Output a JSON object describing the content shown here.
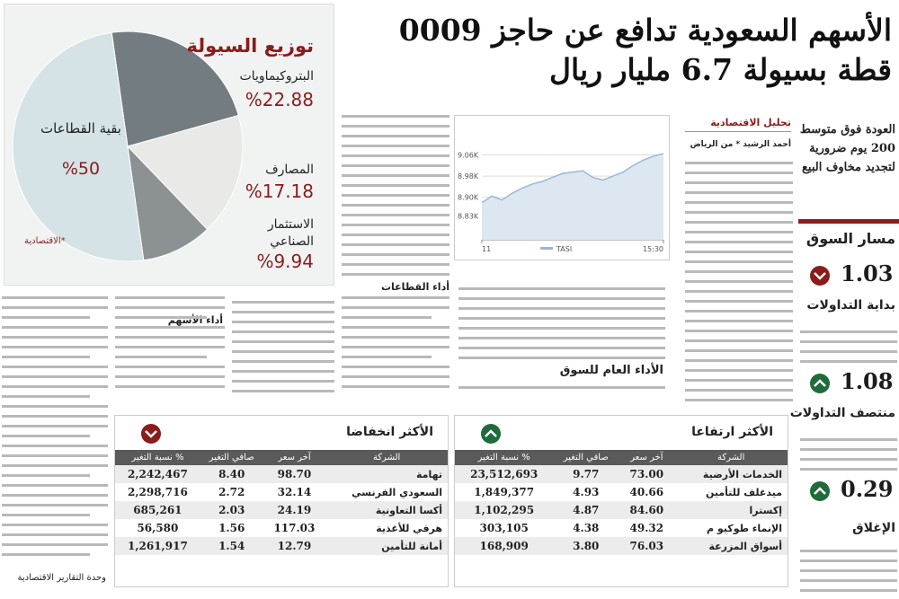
{
  "header": {
    "headline": [
      "الأسهم السعودية تدافع عن حاجز 0009",
      "قطة بسيولة 6.7 مليار ريال"
    ]
  },
  "chart_data": [
    {
      "type": "pie",
      "title": "توزيع السيولة",
      "labels": [
        "البتروكيماويات",
        "المصارف",
        "الاستثمار الصناعي",
        "بقية القطاعات"
      ],
      "values": [
        22.88,
        17.18,
        9.94,
        50
      ],
      "value_labels": [
        "%22.88",
        "%17.18",
        "%9.94",
        "%50"
      ],
      "colors": [
        "#737c80",
        "#e9e9e7",
        "#8c9194",
        "#d5e3e7"
      ],
      "source": "الاقتصادية*"
    },
    {
      "type": "line",
      "x": [
        11,
        11.25,
        11.5,
        11.75,
        12,
        12.25,
        12.5,
        12.75,
        13,
        13.25,
        13.5,
        13.75,
        14,
        14.25,
        14.5,
        14.75,
        15,
        15.25,
        15.5
      ],
      "series": [
        {
          "name": "TASI",
          "color": "#9bb8d3",
          "values": [
            8880,
            8905,
            8890,
            8915,
            8935,
            8950,
            8960,
            8975,
            8990,
            8995,
            9000,
            8975,
            8965,
            8980,
            8995,
            9020,
            9040,
            9055,
            9065
          ]
        }
      ],
      "xlim": [
        11,
        15.5
      ],
      "xticks": [
        {
          "value": 11,
          "label": "11"
        },
        {
          "value": 15.5,
          "label": "15:30"
        }
      ],
      "ylim": [
        8740,
        9180
      ],
      "yticks": [
        {
          "value": 8830,
          "label": "8.83K"
        },
        {
          "value": 8900,
          "label": "8.90K"
        },
        {
          "value": 8980,
          "label": "8.98K"
        },
        {
          "value": 9060,
          "label": "9.06K"
        }
      ],
      "grid": true
    }
  ],
  "sections": {
    "sectors": "أداء القطاعات",
    "market": "الأداء العام للسوق",
    "stocks": "أداء الأسهم",
    "unit": "وحدة التقارير الاقتصادية"
  },
  "analysis": {
    "title": "تحليل الاقتصادية",
    "author": "أحمد الرشيد * من الرياض"
  },
  "sidebar": {
    "highlight": "العودة فوق متوسط 200 يوم ضرورية لتجديد مخاوف البيع",
    "title": "مسار السوق",
    "items": [
      {
        "value": "1.03",
        "label": "بداية التداولات",
        "color": "#8b1c1c"
      },
      {
        "value": "1.08",
        "label": "منتصف التداولات",
        "color": "#1f6b3a"
      },
      {
        "value": "0.29",
        "label": "الإغلاق",
        "color": "#1f6b3a"
      }
    ]
  },
  "tables": [
    {
      "title": "الأكثر ارتفاعا",
      "color": "#1f6b3a",
      "headers": [
        "الشركة",
        "آخر سعر",
        "صافي التغير",
        "% نسبة التغير"
      ],
      "rows": [
        [
          "الخدمات الأرضية",
          "73.00",
          "9.77",
          "23,512,693"
        ],
        [
          "ميدغلف للتأمين",
          "40.66",
          "4.93",
          "1,849,377"
        ],
        [
          "إكسترا",
          "84.60",
          "4.87",
          "1,102,295"
        ],
        [
          "الإنماء طوكيو م",
          "49.32",
          "4.38",
          "303,105"
        ],
        [
          "أسواق المزرعة",
          "76.03",
          "3.80",
          "168,909"
        ]
      ]
    },
    {
      "title": "الأكثر انخفاضا",
      "color": "#8b1c1c",
      "headers": [
        "الشركة",
        "آخر سعر",
        "صافي التغير",
        "% نسبة التغير"
      ],
      "rows": [
        [
          "تهامة",
          "98.70",
          "8.40",
          "2,242,467"
        ],
        [
          "السعودي الفرنسي",
          "32.14",
          "2.72",
          "2,298,716"
        ],
        [
          "أكسا التعاونية",
          "24.19",
          "2.03",
          "685,261"
        ],
        [
          "هرفي للأغذية",
          "117.03",
          "1.56",
          "56,580"
        ],
        [
          "أمانة للتأمين",
          "12.79",
          "1.54",
          "1,261,917"
        ]
      ]
    }
  ]
}
